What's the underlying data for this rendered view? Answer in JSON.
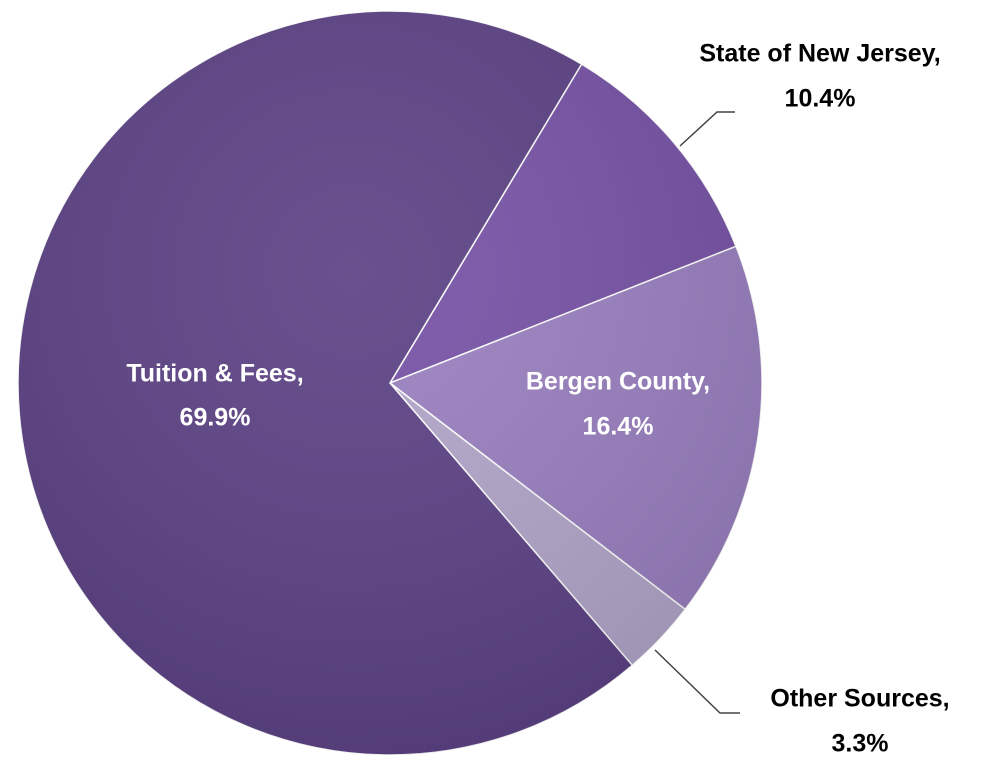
{
  "chart_data": {
    "type": "pie",
    "categories": [
      "State of New Jersey,",
      "Bergen County,",
      "Other Sources,",
      "Tuition & Fees,"
    ],
    "values": [
      10.4,
      16.4,
      3.3,
      69.9
    ],
    "value_labels": [
      "10.4%",
      "16.4%",
      "3.3%",
      "69.9%"
    ],
    "colors": [
      "#7752a6",
      "#9a80c0",
      "#b3a6ca",
      "#5c4285"
    ]
  }
}
